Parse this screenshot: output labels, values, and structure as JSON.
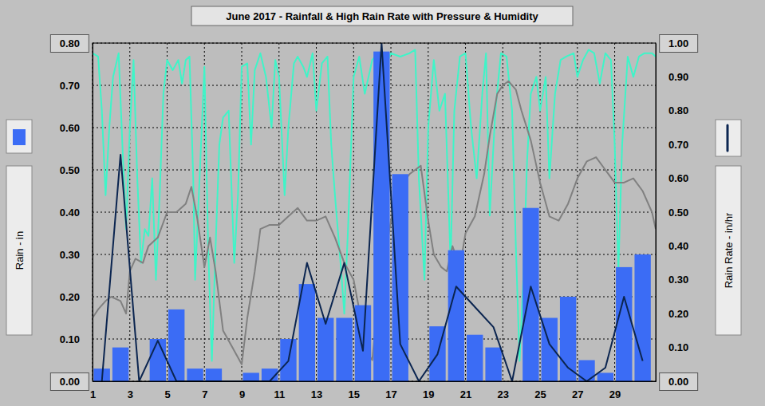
{
  "chart_data": {
    "type": "bar",
    "title": "June 2017 - Rainfall & High Rain Rate with Pressure & Humidity",
    "ylabel": "Rain - in",
    "y2label": "Rain Rate - in/hr",
    "x": [
      1,
      2,
      3,
      4,
      5,
      6,
      7,
      8,
      9,
      10,
      11,
      12,
      13,
      14,
      15,
      16,
      17,
      18,
      19,
      20,
      21,
      22,
      23,
      24,
      25,
      26,
      27,
      28,
      29,
      30
    ],
    "xlim": [
      1,
      31.2
    ],
    "xticks": [
      1,
      3,
      5,
      7,
      9,
      11,
      13,
      15,
      17,
      19,
      21,
      23,
      25,
      27,
      29
    ],
    "ylim": [
      0,
      0.8
    ],
    "yticks": [
      {
        "value": 0,
        "label": "0.00"
      },
      {
        "value": 0.1,
        "label": "0.10"
      },
      {
        "value": 0.2,
        "label": "0.20"
      },
      {
        "value": 0.3,
        "label": "0.30"
      },
      {
        "value": 0.4,
        "label": "0.40"
      },
      {
        "value": 0.5,
        "label": "0.50"
      },
      {
        "value": 0.6,
        "label": "0.60"
      },
      {
        "value": 0.7,
        "label": "0.70"
      },
      {
        "value": 0.8,
        "label": "0.80"
      }
    ],
    "y2lim": [
      0,
      1
    ],
    "y2ticks": [
      {
        "value": 0,
        "label": "0.00"
      },
      {
        "value": 0.1,
        "label": "0.10"
      },
      {
        "value": 0.2,
        "label": "0.20"
      },
      {
        "value": 0.3,
        "label": "0.30"
      },
      {
        "value": 0.4,
        "label": "0.40"
      },
      {
        "value": 0.5,
        "label": "0.50"
      },
      {
        "value": 0.6,
        "label": "0.60"
      },
      {
        "value": 0.7,
        "label": "0.70"
      },
      {
        "value": 0.8,
        "label": "0.80"
      },
      {
        "value": 0.9,
        "label": "0.90"
      },
      {
        "value": 1,
        "label": "1.00"
      }
    ],
    "grid": true,
    "series": [
      {
        "type": "bar",
        "color": "#3b6cf5",
        "values": [
          0.03,
          0.08,
          0,
          0.1,
          0.17,
          0.03,
          0.03,
          0,
          0.02,
          0.03,
          0.1,
          0.23,
          0.15,
          0.15,
          0.18,
          0.78,
          0.49,
          0,
          0.13,
          0.31,
          0.11,
          0.08,
          0,
          0.41,
          0.15,
          0.2,
          0.05,
          0.02,
          0.27,
          0.3
        ]
      },
      {
        "type": "line",
        "axis": "y2",
        "color": "#0b2550",
        "values": [
          0,
          0.67,
          0,
          0.12,
          0,
          0,
          0,
          0,
          0,
          0,
          0.06,
          0.35,
          0.17,
          0.35,
          0.09,
          1.0,
          0.11,
          0,
          0.08,
          0.28,
          0.22,
          0.16,
          0,
          0.28,
          0.11,
          0.04,
          0,
          0.04,
          0.25,
          0.06
        ]
      },
      {
        "type": "line",
        "color": "#808080",
        "x": [
          1,
          1.3,
          1.7,
          2,
          2.5,
          2.8,
          3,
          3.3,
          3.7,
          4,
          4.5,
          5,
          5.5,
          6,
          6.3,
          6.6,
          7,
          7.3,
          7.6,
          8,
          8.5,
          9,
          9.3,
          9.7,
          10,
          10.5,
          11,
          11.5,
          12,
          12.5,
          13,
          13.5,
          14,
          14.5,
          15,
          15.3,
          15.7,
          16,
          16.3,
          16.7,
          17,
          17.5,
          18,
          18.3,
          18.6,
          19,
          19.3,
          19.7,
          20,
          20.3,
          20.7,
          21,
          21.5,
          22,
          22.3,
          22.7,
          23,
          23.3,
          23.7,
          24,
          24.5,
          25,
          25.5,
          26,
          26.5,
          27,
          27.5,
          28,
          28.5,
          29,
          29.5,
          30,
          30.5,
          31,
          31.2
        ],
        "values": [
          0.15,
          0.17,
          0.19,
          0.2,
          0.19,
          0.16,
          0.26,
          0.29,
          0.28,
          0.32,
          0.34,
          0.4,
          0.4,
          0.42,
          0.46,
          0.39,
          0.27,
          0.34,
          0.26,
          0.12,
          0.08,
          0.04,
          0.15,
          0.26,
          0.36,
          0.37,
          0.37,
          0.39,
          0.41,
          0.38,
          0.38,
          0.39,
          0.34,
          0.28,
          0.24,
          0.17,
          0.07,
          0.05,
          0.19,
          0.3,
          0.38,
          0.46,
          0.49,
          0.5,
          0.51,
          0.38,
          0.3,
          0.27,
          0.26,
          0.32,
          0.27,
          0.35,
          0.39,
          0.49,
          0.58,
          0.68,
          0.7,
          0.71,
          0.69,
          0.64,
          0.57,
          0.47,
          0.39,
          0.38,
          0.42,
          0.48,
          0.52,
          0.53,
          0.5,
          0.47,
          0.47,
          0.48,
          0.45,
          0.4,
          0.36
        ]
      },
      {
        "type": "line",
        "axis": "y2",
        "color": "#3ef5c8",
        "x": [
          1,
          1.3,
          1.5,
          1.7,
          1.9,
          2.1,
          2.4,
          2.6,
          2.8,
          3,
          3.2,
          3.4,
          3.6,
          3.8,
          4,
          4.2,
          4.4,
          4.6,
          4.8,
          5,
          5.3,
          5.6,
          5.8,
          6,
          6.2,
          6.4,
          6.5,
          6.7,
          7,
          7.2,
          7.4,
          7.6,
          7.8,
          8,
          8.3,
          8.6,
          8.8,
          9,
          9.3,
          9.5,
          9.7,
          10,
          10.3,
          10.6,
          10.8,
          11,
          11.3,
          11.5,
          11.8,
          12,
          12.3,
          12.5,
          12.8,
          13,
          13.3,
          13.6,
          13.8,
          14,
          14.3,
          14.5,
          14.7,
          15,
          15.3,
          15.6,
          16,
          16.3,
          16.7,
          17,
          17.5,
          18,
          18.3,
          18.5,
          18.8,
          19,
          19.3,
          19.6,
          19.9,
          20.2,
          20.4,
          20.7,
          21,
          21.3,
          21.6,
          21.9,
          22.1,
          22.3,
          22.6,
          22.9,
          23.2,
          23.5,
          23.7,
          23.9,
          24.1,
          24.3,
          24.5,
          24.8,
          25,
          25.3,
          25.5,
          25.8,
          26.1,
          26.4,
          26.8,
          27,
          27.3,
          27.6,
          27.9,
          28.2,
          28.5,
          28.8,
          29,
          29.2,
          29.4,
          29.7,
          30,
          30.3,
          30.6,
          31,
          31.2
        ],
        "values": [
          0.97,
          0.96,
          0.8,
          0.55,
          0.75,
          0.9,
          0.97,
          0.7,
          0.45,
          0.75,
          0.95,
          0.6,
          0.35,
          0.45,
          0.43,
          0.6,
          0.3,
          0.55,
          0.85,
          0.95,
          0.92,
          0.95,
          0.88,
          0.95,
          0.96,
          0.6,
          0.3,
          0.55,
          0.93,
          0.4,
          0.06,
          0.4,
          0.7,
          0.78,
          0.8,
          0.35,
          0.55,
          0.93,
          0.94,
          0.7,
          0.92,
          0.97,
          0.9,
          0.75,
          0.95,
          0.9,
          0.55,
          0.75,
          0.94,
          0.96,
          0.93,
          0.9,
          0.97,
          0.8,
          0.94,
          0.96,
          0.7,
          0.55,
          0.35,
          0.2,
          0.45,
          0.9,
          0.96,
          0.85,
          0.95,
          0.97,
          0.93,
          0.97,
          0.96,
          0.97,
          0.98,
          0.6,
          0.3,
          0.75,
          0.95,
          0.8,
          0.85,
          0.35,
          0.8,
          0.96,
          0.97,
          0.75,
          0.6,
          0.85,
          0.97,
          0.49,
          0.8,
          0.97,
          0.96,
          0.8,
          0.4,
          0.06,
          0.3,
          0.65,
          0.85,
          0.9,
          0.8,
          0.9,
          0.6,
          0.85,
          0.95,
          0.96,
          0.97,
          0.9,
          0.95,
          0.98,
          0.97,
          0.88,
          0.97,
          0.95,
          0.7,
          0.33,
          0.7,
          0.96,
          0.9,
          0.96,
          0.97,
          0.97,
          0.96
        ]
      }
    ]
  }
}
